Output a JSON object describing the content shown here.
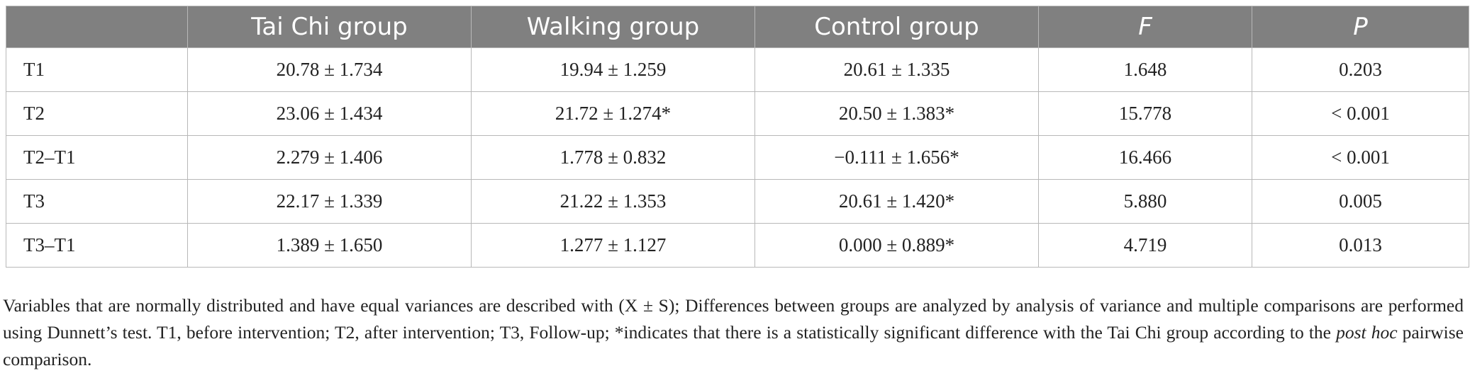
{
  "table": {
    "headers": [
      "",
      "Tai Chi group",
      "Walking group",
      "Control group",
      "F",
      "P"
    ],
    "rows": [
      [
        "T1",
        "20.78 ± 1.734",
        "19.94 ± 1.259",
        "20.61 ± 1.335",
        "1.648",
        "0.203"
      ],
      [
        "T2",
        "23.06 ± 1.434",
        "21.72 ± 1.274*",
        "20.50 ± 1.383*",
        "15.778",
        "< 0.001"
      ],
      [
        "T2–T1",
        "2.279 ± 1.406",
        "1.778 ± 0.832",
        "−0.111 ± 1.656*",
        "16.466",
        "< 0.001"
      ],
      [
        "T3",
        "22.17 ± 1.339",
        "21.22 ± 1.353",
        "20.61 ± 1.420*",
        "5.880",
        "0.005"
      ],
      [
        "T3–T1",
        "1.389 ± 1.650",
        "1.277 ± 1.127",
        "0.000 ± 0.889*",
        "4.719",
        "0.013"
      ]
    ]
  },
  "footnote": {
    "text_before": "Variables that are normally distributed and have equal variances are described with (X ± S); Differences between groups are analyzed by analysis of variance and multiple comparisons are performed using Dunnett’s test. T1, before intervention; T2, after intervention; T3, Follow-up; *indicates that there is a statistically significant difference with the Tai Chi group according to the ",
    "italic": "post hoc",
    "text_after": " pairwise comparison."
  },
  "colors": {
    "header_bg": "#808080",
    "header_text": "#ffffff",
    "border": "#b8b8b8"
  }
}
